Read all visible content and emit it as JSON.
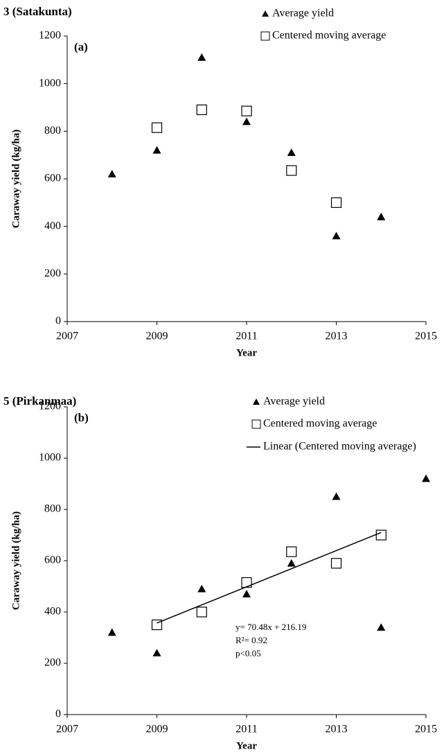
{
  "chart_data": [
    {
      "type": "scatter",
      "title": "3 (Satakunta)",
      "panel_label": "(a)",
      "x_label": "Year",
      "y_label": "Caraway yield (kg/ha)",
      "xlim": [
        2007,
        2015
      ],
      "xticks": [
        2007,
        2009,
        2011,
        2013,
        2015
      ],
      "ylim": [
        0,
        1200
      ],
      "yticks": [
        0,
        200,
        400,
        600,
        800,
        1000,
        1200
      ],
      "series": [
        {
          "name": "Average yield",
          "color": "#000000",
          "marker": "triangle",
          "x": [
            2008,
            2009,
            2010,
            2011,
            2012,
            2013,
            2014
          ],
          "values": [
            620,
            720,
            1110,
            840,
            710,
            360,
            440
          ]
        },
        {
          "name": "Centered moving average",
          "color": "#000000",
          "marker": "square",
          "x": [
            2009,
            2010,
            2011,
            2012,
            2013
          ],
          "values": [
            815,
            890,
            885,
            635,
            500
          ]
        }
      ]
    },
    {
      "type": "scatter",
      "title": "5 (Pirkanmaa)",
      "panel_label": "(b)",
      "x_label": "Year",
      "y_label": "Caraway yield (kg/ha)",
      "xlim": [
        2007,
        2015
      ],
      "xticks": [
        2007,
        2009,
        2011,
        2013,
        2015
      ],
      "ylim": [
        0,
        1200
      ],
      "yticks": [
        0,
        200,
        400,
        600,
        800,
        1000,
        1200
      ],
      "series": [
        {
          "name": "Average yield",
          "color": "#000000",
          "marker": "triangle",
          "x": [
            2008,
            2009,
            2010,
            2011,
            2012,
            2013,
            2014,
            2015
          ],
          "values": [
            320,
            240,
            490,
            470,
            590,
            850,
            340,
            920
          ]
        },
        {
          "name": "Centered moving average",
          "color": "#000000",
          "marker": "square",
          "x": [
            2009,
            2010,
            2011,
            2012,
            2013,
            2014
          ],
          "values": [
            350,
            400,
            515,
            635,
            590,
            700
          ]
        },
        {
          "name": "Linear (Centered moving average)",
          "color": "#000000",
          "marker": "line",
          "x": [
            2009,
            2014
          ],
          "values": [
            357,
            710
          ]
        }
      ],
      "annotations": [
        "y= 70.48x + 216.19",
        "R²= 0.92",
        "p<0.05"
      ]
    }
  ]
}
